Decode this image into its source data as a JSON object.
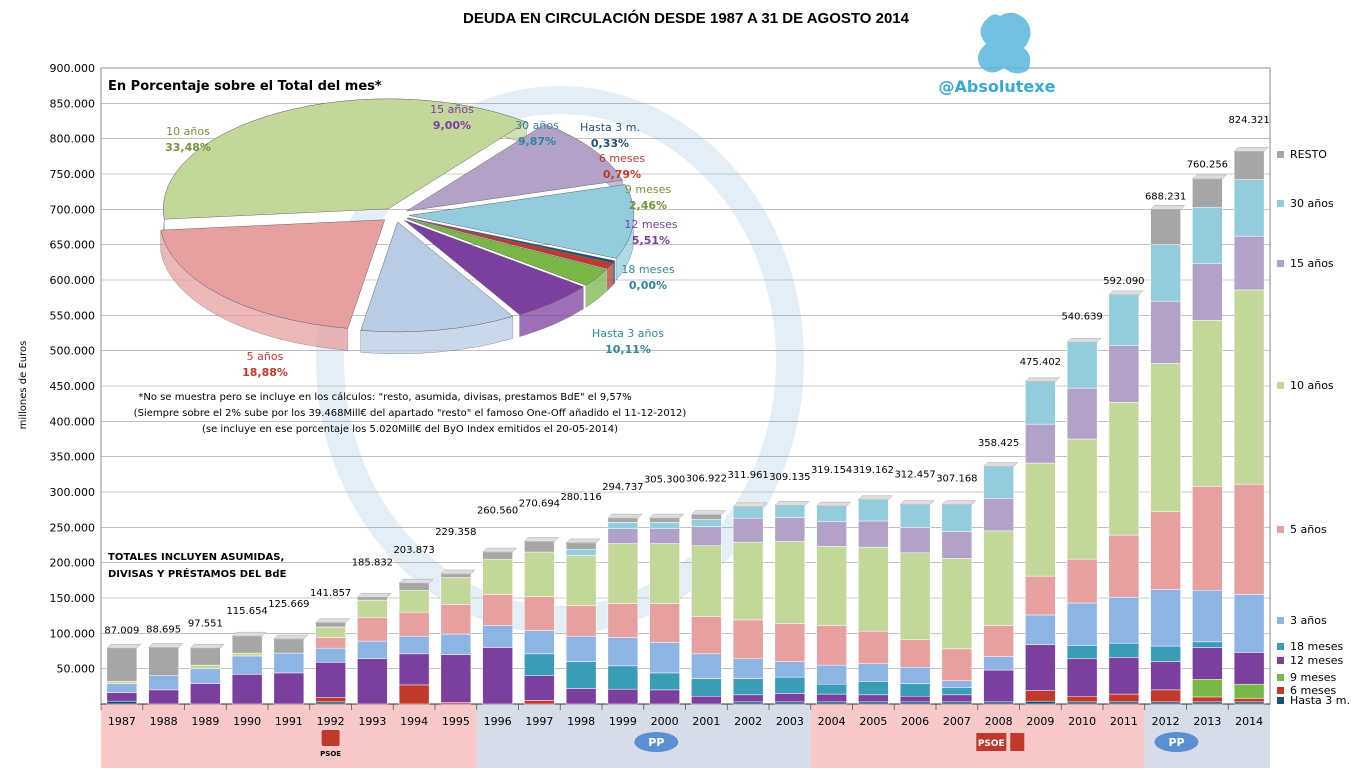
{
  "chart_data": {
    "type": "bar",
    "title": "DEUDA EN CIRCULACIÓN DESDE 1987 A 31 DE AGOSTO 2014",
    "ylabel": "millones de Euros",
    "ylim": [
      0,
      900000
    ],
    "yticks": [
      "900.000",
      "850.000",
      "800.000",
      "750.000",
      "700.000",
      "650.000",
      "600.000",
      "550.000",
      "500.000",
      "450.000",
      "400.000",
      "350.000",
      "300.000",
      "250.000",
      "200.000",
      "150.000",
      "100.000",
      "50.000"
    ],
    "grid": true,
    "categories": [
      "1987",
      "1988",
      "1989",
      "1990",
      "1991",
      "1992",
      "1993",
      "1994",
      "1995",
      "1996",
      "1997",
      "1998",
      "1999",
      "2000",
      "2001",
      "2002",
      "2003",
      "2004",
      "2005",
      "2006",
      "2007",
      "2008",
      "2009",
      "2010",
      "2011",
      "2012",
      "2013",
      "2014"
    ],
    "total_labels": [
      "87.009",
      "88.695",
      "97.551",
      "115.654",
      "125.669",
      "141.857",
      "185.832",
      "203.873",
      "229.358",
      "260.560",
      "270.694",
      "280.116",
      "294.737",
      "305.300",
      "306.922",
      "311.961",
      "309.135",
      "319.154",
      "319.162",
      "312.457",
      "307.168",
      "358.425",
      "475.402",
      "540.639",
      "592.090",
      "688.231",
      "760.256",
      "824.321"
    ],
    "totals_with_extras": [
      87009,
      88695,
      97551,
      115654,
      125669,
      141857,
      185832,
      203873,
      229358,
      260560,
      270694,
      280116,
      294737,
      305300,
      306922,
      311961,
      309135,
      319154,
      319162,
      312457,
      307168,
      358425,
      475402,
      540639,
      592090,
      688231,
      760256,
      824321
    ],
    "series": [
      {
        "name": "Hasta 3 m.",
        "color": "#1f4e79",
        "values": [
          4000,
          0,
          0,
          0,
          0,
          3000,
          0,
          0,
          0,
          0,
          0,
          0,
          0,
          0,
          0,
          3000,
          3000,
          3000,
          3000,
          3000,
          3000,
          3000,
          4000,
          3000,
          3000,
          3000,
          3000,
          3000
        ]
      },
      {
        "name": "6 meses",
        "color": "#c0392b",
        "values": [
          0,
          0,
          0,
          0,
          0,
          6000,
          0,
          27000,
          2000,
          0,
          5000,
          0,
          0,
          0,
          0,
          0,
          0,
          0,
          0,
          0,
          0,
          0,
          15000,
          8000,
          11000,
          17000,
          7000,
          5000
        ]
      },
      {
        "name": "9 meses",
        "color": "#7ab648",
        "values": [
          0,
          0,
          0,
          0,
          0,
          0,
          0,
          0,
          0,
          0,
          0,
          0,
          0,
          0,
          0,
          0,
          0,
          0,
          0,
          0,
          0,
          0,
          0,
          0,
          0,
          0,
          25000,
          20000
        ]
      },
      {
        "name": "12 meses",
        "color": "#7b3f9e",
        "values": [
          12000,
          20000,
          29000,
          42000,
          44000,
          50000,
          64000,
          44000,
          68000,
          80000,
          35000,
          22000,
          21000,
          20000,
          11000,
          10000,
          12000,
          11000,
          10000,
          8000,
          10000,
          45000,
          65000,
          53000,
          52000,
          40000,
          45000,
          45000
        ]
      },
      {
        "name": "18 meses",
        "color": "#3b9cb5",
        "values": [
          0,
          0,
          0,
          0,
          0,
          0,
          0,
          0,
          0,
          0,
          31000,
          38000,
          33000,
          24000,
          25000,
          23000,
          23000,
          14000,
          19000,
          18000,
          10000,
          0,
          0,
          19000,
          20000,
          22000,
          8000,
          0
        ]
      },
      {
        "name": "3 años",
        "color": "#8eb4e3",
        "values": [
          13000,
          20000,
          21000,
          26000,
          28000,
          20000,
          25000,
          25000,
          29000,
          31000,
          33000,
          36000,
          40000,
          43000,
          35000,
          28000,
          22000,
          27000,
          25000,
          23000,
          10000,
          19000,
          42000,
          60000,
          65000,
          80000,
          73000,
          82000
        ]
      },
      {
        "name": "5 años",
        "color": "#e6a0a0",
        "values": [
          0,
          0,
          0,
          0,
          0,
          15000,
          33000,
          34000,
          42000,
          44000,
          48000,
          43000,
          48000,
          55000,
          53000,
          55000,
          54000,
          56000,
          46000,
          39000,
          45000,
          44000,
          55000,
          62000,
          88000,
          110000,
          147000,
          156000
        ]
      },
      {
        "name": "10 años",
        "color": "#c4d79b",
        "values": [
          3000,
          0,
          5000,
          4000,
          0,
          15000,
          25000,
          31000,
          38000,
          50000,
          63000,
          71000,
          85000,
          85000,
          100000,
          110000,
          116000,
          112000,
          119000,
          123000,
          128000,
          134000,
          160000,
          170000,
          188000,
          210000,
          235000,
          275000
        ]
      },
      {
        "name": "15 años",
        "color": "#b3a2c7",
        "values": [
          0,
          0,
          0,
          0,
          0,
          0,
          0,
          0,
          0,
          0,
          0,
          0,
          21000,
          21000,
          27000,
          34000,
          34000,
          35000,
          37000,
          36000,
          38000,
          46000,
          55000,
          72000,
          80000,
          88000,
          80000,
          76000
        ]
      },
      {
        "name": "30 años",
        "color": "#93cddd",
        "values": [
          0,
          0,
          0,
          0,
          0,
          0,
          0,
          0,
          0,
          0,
          0,
          9000,
          9000,
          9000,
          10000,
          16000,
          17000,
          22000,
          30000,
          32000,
          38000,
          45000,
          60000,
          65000,
          72000,
          80000,
          80000,
          80000
        ]
      },
      {
        "name": "RESTO",
        "color": "#a6a6a6",
        "values": [
          47000,
          40000,
          24000,
          24000,
          20000,
          6000,
          4000,
          10000,
          5000,
          10000,
          15000,
          9000,
          6000,
          6000,
          7000,
          0,
          0,
          0,
          0,
          0,
          0,
          0,
          0,
          0,
          0,
          50000,
          40000,
          40000
        ]
      }
    ],
    "legend": [
      "RESTO",
      "30 años",
      "15 años",
      "10 años",
      "5 años",
      "3 años",
      "18 meses",
      "12 meses",
      "9 meses",
      "6 meses",
      "Hasta 3 m."
    ],
    "legend_placement": "right",
    "pie": {
      "title": "En Porcentaje sobre el Total del mes*",
      "slices": [
        {
          "name": "10 años",
          "value": 33.48,
          "label": "33,48%",
          "color": "#c4d79b"
        },
        {
          "name": "15 años",
          "value": 9.0,
          "label": "9,00%",
          "color": "#b3a2c7"
        },
        {
          "name": "30 años",
          "value": 9.87,
          "label": "9,87%",
          "color": "#93cddd"
        },
        {
          "name": "Hasta 3 m.",
          "value": 0.33,
          "label": "0,33%",
          "color": "#1f4e79"
        },
        {
          "name": "6 meses",
          "value": 0.79,
          "label": "0,79%",
          "color": "#c0392b"
        },
        {
          "name": "9 meses",
          "value": 2.46,
          "label": "2,46%",
          "color": "#7ab648"
        },
        {
          "name": "12 meses",
          "value": 5.51,
          "label": "5,51%",
          "color": "#7b3f9e"
        },
        {
          "name": "18 meses",
          "value": 0.0,
          "label": "0,00%",
          "color": "#3b9cb5"
        },
        {
          "name": "Hasta 3 años",
          "value": 10.11,
          "label": "10,11%",
          "color": "#b8cce4"
        },
        {
          "name": "5 años",
          "value": 18.88,
          "label": "18,88%",
          "color": "#e6a0a0"
        }
      ]
    },
    "notes": [
      "*No se muestra pero se incluye en los cálculos: \"resto, asumida, divisas, prestamos BdE\" el 9,57%",
      "(Siempre sobre el 2% sube por los 39.468Mill€ del apartado \"resto\" el famoso One-Off añadido el 11-12-2012)",
      "(se incluye en ese porcentaje los 5.020Mill€ del ByO Index emitidos el 20-05-2014)"
    ],
    "side_note": [
      "TOTALES INCLUYEN ASUMIDAS,",
      "DIVISAS Y PRÉSTAMOS  DEL BdE"
    ],
    "watermark": "@Absolutexe",
    "governments": [
      {
        "party": "PSOE",
        "from": 0,
        "to": 8,
        "color": "#f7c9c9"
      },
      {
        "party": "PP",
        "from": 9,
        "to": 16,
        "color": "#d6dde8"
      },
      {
        "party": "PSOE",
        "from": 17,
        "to": 24,
        "color": "#f7c9c9"
      },
      {
        "party": "PP",
        "from": 25,
        "to": 27,
        "color": "#d6dde8"
      }
    ]
  }
}
